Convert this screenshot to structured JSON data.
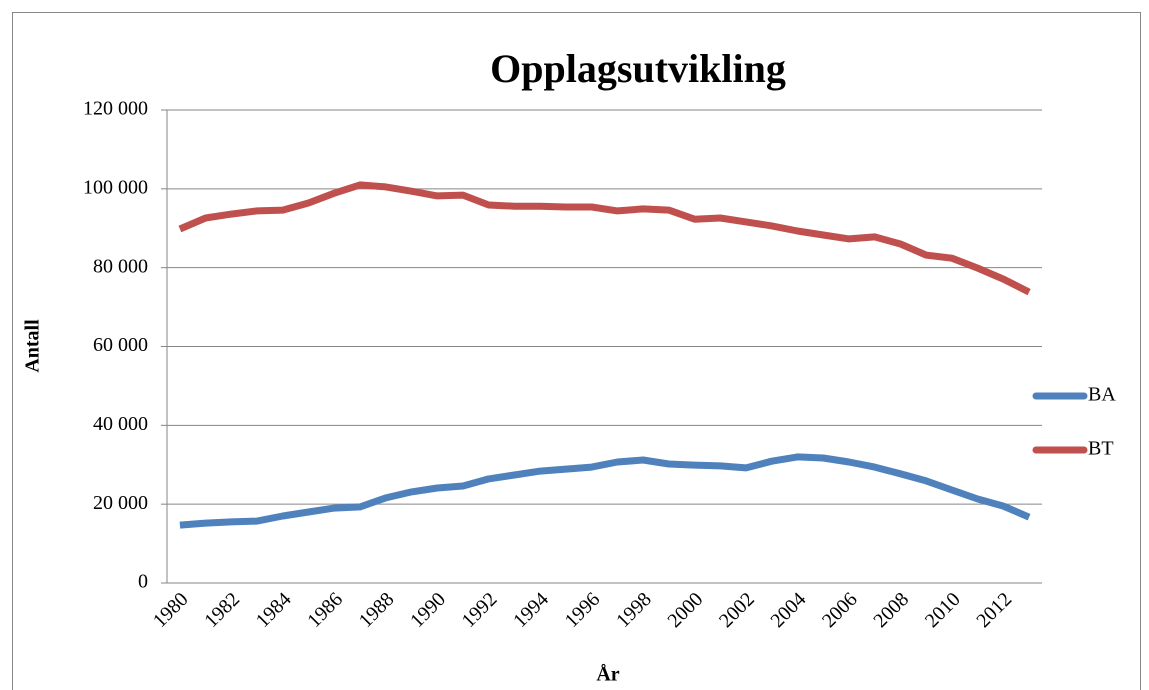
{
  "chart_data": {
    "type": "line",
    "title": "Opplagsutvikling",
    "x_label": "År",
    "y_label": "Antall",
    "categories": [
      "1980",
      null,
      "1982",
      null,
      "1984",
      null,
      "1986",
      null,
      "1988",
      null,
      "1990",
      null,
      "1992",
      null,
      "1994",
      null,
      "1996",
      null,
      "1998",
      null,
      "2000",
      null,
      "2002",
      null,
      "2004",
      null,
      "2006",
      null,
      "2008",
      null,
      "2010",
      null,
      "2012",
      null
    ],
    "series": [
      {
        "name": "BA",
        "color": "#4f81bd",
        "values": [
          14700,
          15200,
          15500,
          15700,
          17000,
          18000,
          19000,
          19300,
          21600,
          23100,
          24100,
          24600,
          26400,
          27400,
          28400,
          28900,
          29400,
          30700,
          31200,
          30200,
          29900,
          29700,
          29200,
          30900,
          32000,
          31700,
          30700,
          29400,
          27700,
          25900,
          23600,
          21300,
          19500,
          16700
        ]
      },
      {
        "name": "BT",
        "color": "#c0504d",
        "values": [
          89800,
          92600,
          93600,
          94400,
          94600,
          96400,
          98900,
          101000,
          100500,
          99400,
          98200,
          98400,
          95900,
          95600,
          95600,
          95400,
          95400,
          94400,
          94900,
          94600,
          92300,
          92600,
          91600,
          90600,
          89300,
          88300,
          87300,
          87800,
          86000,
          83200,
          82400,
          79900,
          77100,
          73800
        ]
      }
    ],
    "ylim": [
      0,
      120000
    ],
    "yticks": [
      0,
      {
        "value": 20000,
        "label": "20 000"
      },
      {
        "value": 40000,
        "label": "40 000"
      },
      {
        "value": 60000,
        "label": "60 000"
      },
      {
        "value": 80000,
        "label": "80 000"
      },
      {
        "value": 100000,
        "label": "100 000"
      },
      {
        "value": 120000,
        "label": "120 000"
      }
    ],
    "grid": true,
    "legend": "right"
  }
}
